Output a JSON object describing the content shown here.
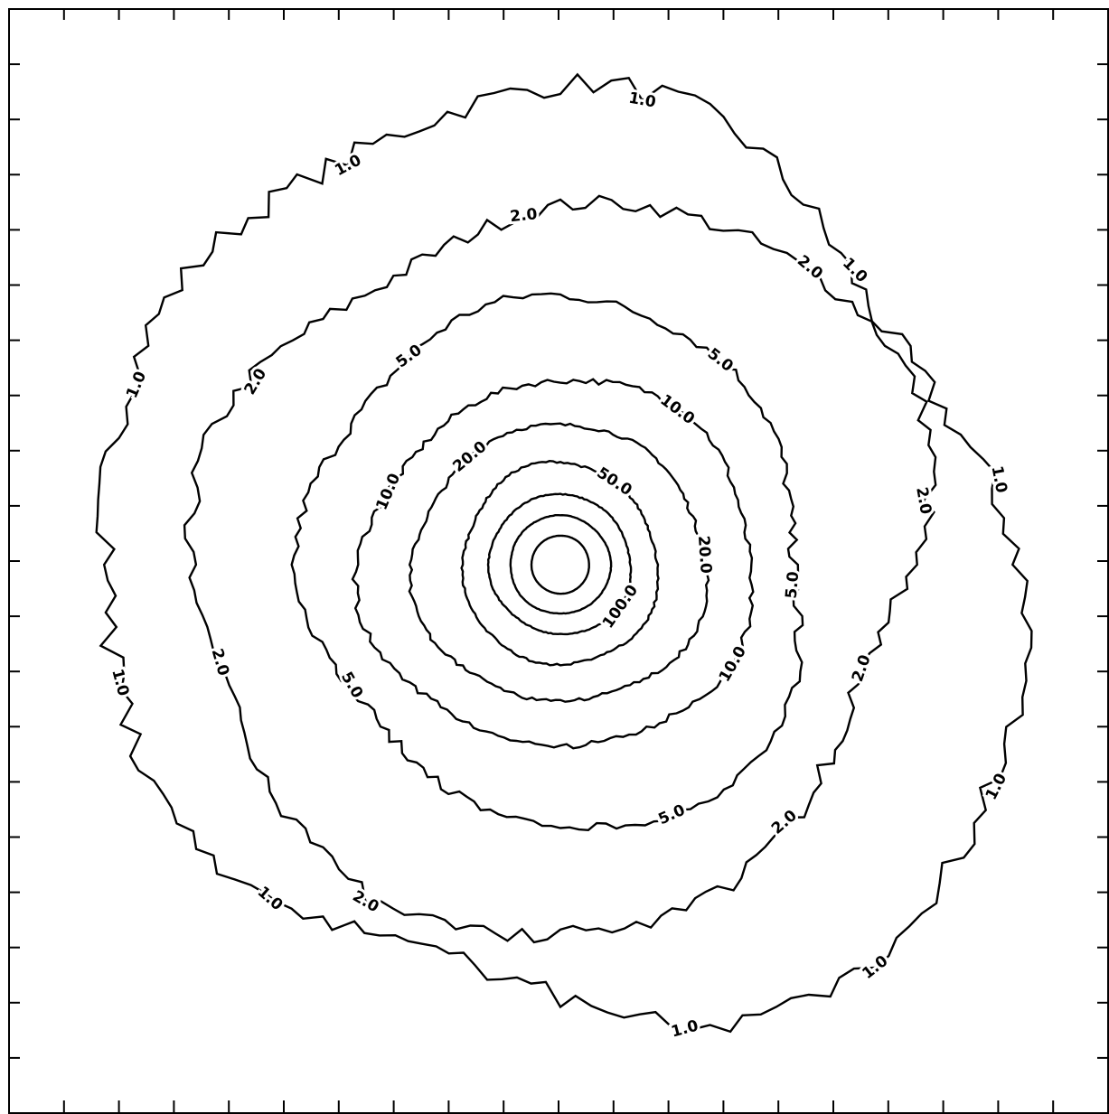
{
  "chart_data": {
    "type": "contour",
    "levels": [
      1,
      2,
      5,
      10,
      20,
      50,
      100
    ],
    "level_labels": [
      "1.0",
      "2.0",
      "5.0",
      "10.0",
      "20.0",
      "50.0",
      "100.0"
    ],
    "color": "#000000"
  }
}
